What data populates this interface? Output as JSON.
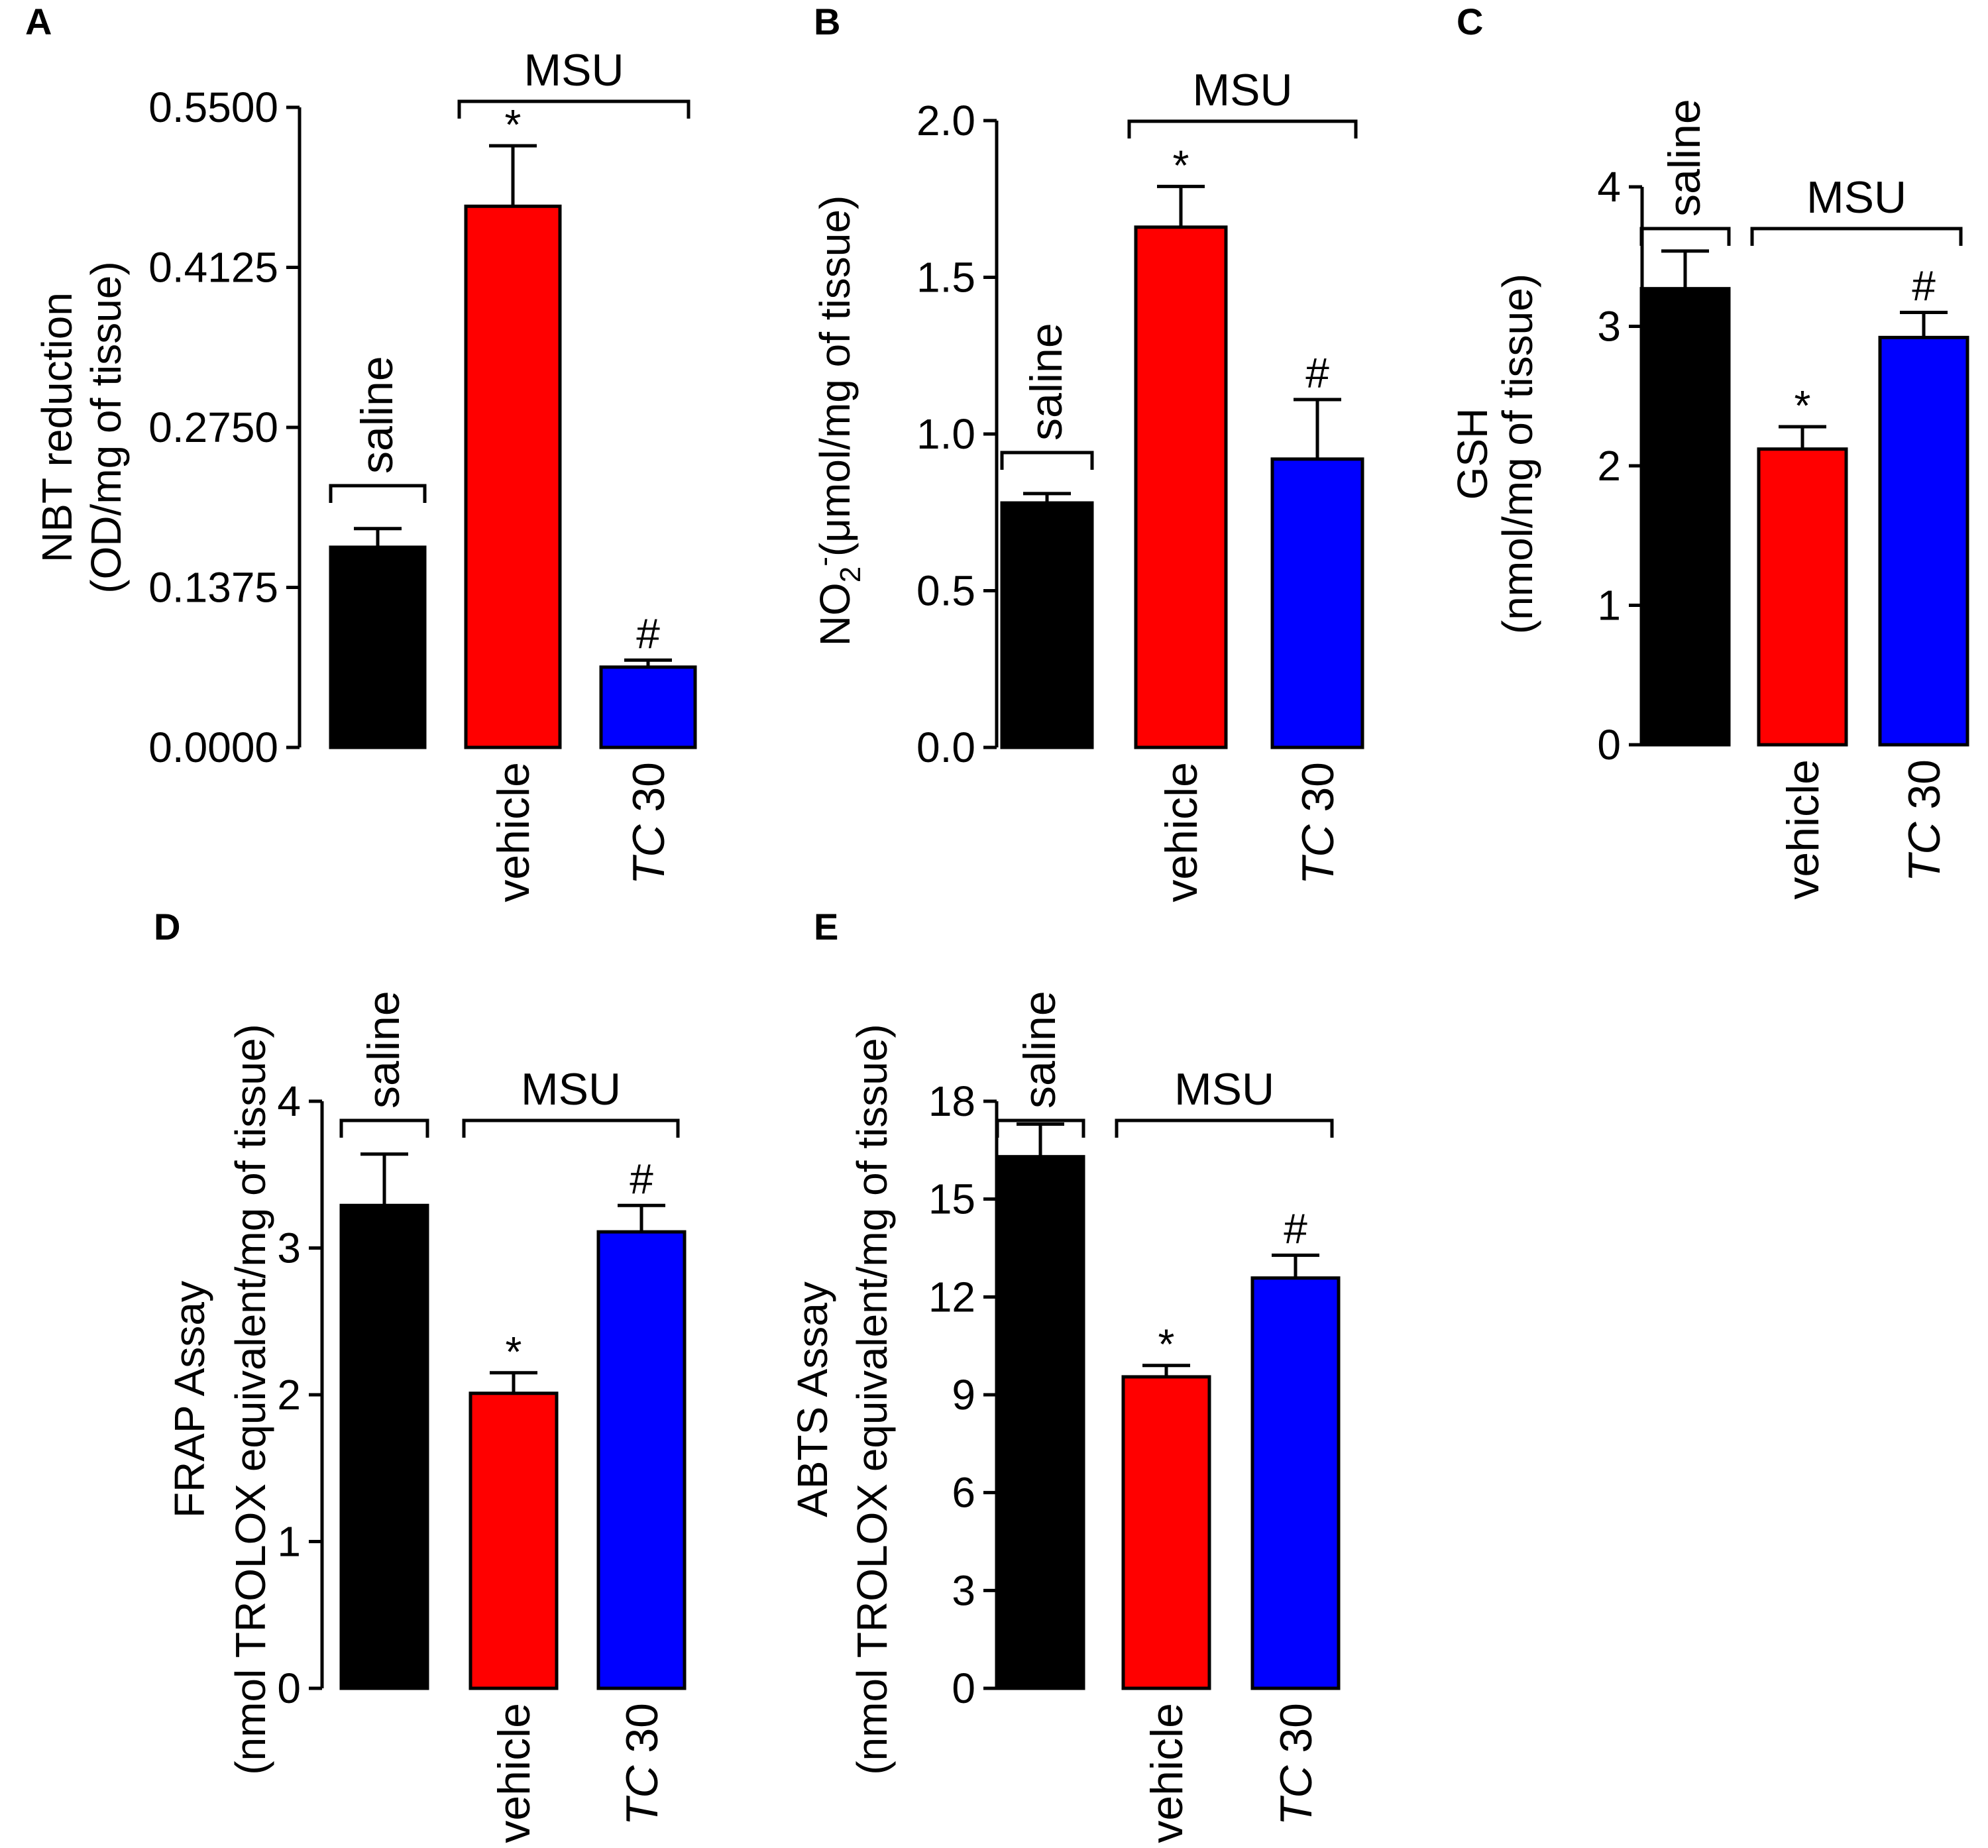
{
  "colors": {
    "saline": "#000000",
    "vehicle": "#ff0000",
    "tc30": "#0000ff"
  },
  "group_labels": {
    "saline": "saline",
    "msu": "MSU"
  },
  "chart_data": [
    {
      "id": "A",
      "type": "bar",
      "letter": "A",
      "ylabel_lines": [
        "NBT reduction",
        "(OD/mg of tissue)"
      ],
      "ylim": [
        0,
        0.55
      ],
      "ticks": [
        0.0,
        0.1375,
        0.275,
        0.4125,
        0.55
      ],
      "tick_labels": [
        "0.0000",
        "0.1375",
        "0.2750",
        "0.4125",
        "0.5500"
      ],
      "categories": [
        "saline",
        "vehicle",
        "TC 30"
      ],
      "category_labels": [
        "",
        "vehicle",
        "TC 30"
      ],
      "values": [
        0.172,
        0.465,
        0.069
      ],
      "errors": [
        0.016,
        0.052,
        0.006
      ],
      "significance": [
        "",
        "*",
        "#"
      ],
      "saline_label_position": "beside"
    },
    {
      "id": "B",
      "type": "bar",
      "letter": "B",
      "ylabel_lines": [
        "NO",
        "2",
        "-",
        "(μmol/mg of tissue)"
      ],
      "ylim": [
        0,
        2.0
      ],
      "ticks": [
        0.0,
        0.5,
        1.0,
        1.5,
        2.0
      ],
      "tick_labels": [
        "0.0",
        "0.5",
        "1.0",
        "1.5",
        "2.0"
      ],
      "categories": [
        "saline",
        "vehicle",
        "TC 30"
      ],
      "category_labels": [
        "",
        "vehicle",
        "TC 30"
      ],
      "values": [
        0.78,
        1.66,
        0.92
      ],
      "errors": [
        0.03,
        0.13,
        0.19
      ],
      "significance": [
        "",
        "*",
        "#"
      ],
      "saline_label_position": "beside"
    },
    {
      "id": "C",
      "type": "bar",
      "letter": "C",
      "ylabel_lines": [
        "GSH",
        "(nmol/mg of tissue)"
      ],
      "ylim": [
        0,
        4
      ],
      "ticks": [
        0,
        1,
        2,
        3,
        4
      ],
      "tick_labels": [
        "0",
        "1",
        "2",
        "3",
        "4"
      ],
      "categories": [
        "saline",
        "vehicle",
        "TC 30"
      ],
      "category_labels": [
        "",
        "vehicle",
        "TC 30"
      ],
      "values": [
        3.27,
        2.12,
        2.92
      ],
      "errors": [
        0.27,
        0.16,
        0.18
      ],
      "significance": [
        "",
        "*",
        "#"
      ],
      "saline_label_position": "above"
    },
    {
      "id": "D",
      "type": "bar",
      "letter": "D",
      "ylabel_lines": [
        "FRAP Assay",
        "(nmol TROLOX equivalent/mg of tissue)"
      ],
      "ylim": [
        0,
        4
      ],
      "ticks": [
        0,
        1,
        2,
        3,
        4
      ],
      "tick_labels": [
        "0",
        "1",
        "2",
        "3",
        "4"
      ],
      "categories": [
        "saline",
        "vehicle",
        "TC 30"
      ],
      "category_labels": [
        "",
        "vehicle",
        "TC 30"
      ],
      "values": [
        3.29,
        2.01,
        3.11
      ],
      "errors": [
        0.35,
        0.14,
        0.18
      ],
      "significance": [
        "",
        "*",
        "#"
      ],
      "saline_label_position": "above"
    },
    {
      "id": "E",
      "type": "bar",
      "letter": "E",
      "ylabel_lines": [
        "ABTS Assay",
        "(nmol TROLOX equivalent/mg of tissue)"
      ],
      "ylim": [
        0,
        18
      ],
      "ticks": [
        0,
        3,
        6,
        9,
        12,
        15,
        18
      ],
      "tick_labels": [
        "0",
        "3",
        "6",
        "9",
        "12",
        "15",
        "18"
      ],
      "categories": [
        "saline",
        "vehicle",
        "TC 30"
      ],
      "category_labels": [
        "",
        "vehicle",
        "TC 30"
      ],
      "values": [
        16.3,
        9.55,
        12.58
      ],
      "errors": [
        1.0,
        0.35,
        0.7
      ],
      "significance": [
        "",
        "*",
        "#"
      ],
      "saline_label_position": "above"
    }
  ]
}
